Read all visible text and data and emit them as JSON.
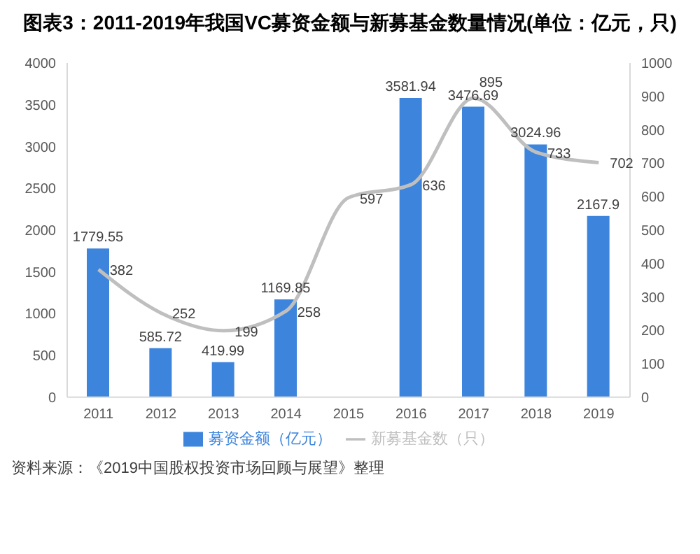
{
  "chart_data": {
    "type": "bar",
    "title": "图表3：2011-2019年我国VC募资金额与新募基金数量情况(单位：亿元，只)",
    "categories": [
      "2011",
      "2012",
      "2013",
      "2014",
      "2015",
      "2016",
      "2017",
      "2018",
      "2019"
    ],
    "series": [
      {
        "name": "募资金额（亿元）",
        "color": "#3d85dc",
        "values": [
          1779.55,
          585.72,
          419.99,
          1169.85,
          null,
          3581.94,
          3476.69,
          3024.96,
          2167.9
        ]
      },
      {
        "name": "新募基金数（只）",
        "type": "line",
        "axis": "y2",
        "color": "#bfbfbf",
        "values": [
          382,
          252,
          199,
          258,
          597,
          636,
          895,
          733,
          702
        ]
      }
    ],
    "ylim": [
      0,
      4000
    ],
    "yticks": [
      0,
      500,
      1000,
      1500,
      2000,
      2500,
      3000,
      3500,
      4000
    ],
    "y2lim": [
      0,
      1000
    ],
    "y2ticks": [
      0,
      100,
      200,
      300,
      400,
      500,
      600,
      700,
      800,
      900,
      1000
    ],
    "data_labels": true,
    "legend": "bottom",
    "marker": "none",
    "annotations": [
      "资料来源：《2019中国股权投资市场回顾与展望》整理"
    ]
  }
}
